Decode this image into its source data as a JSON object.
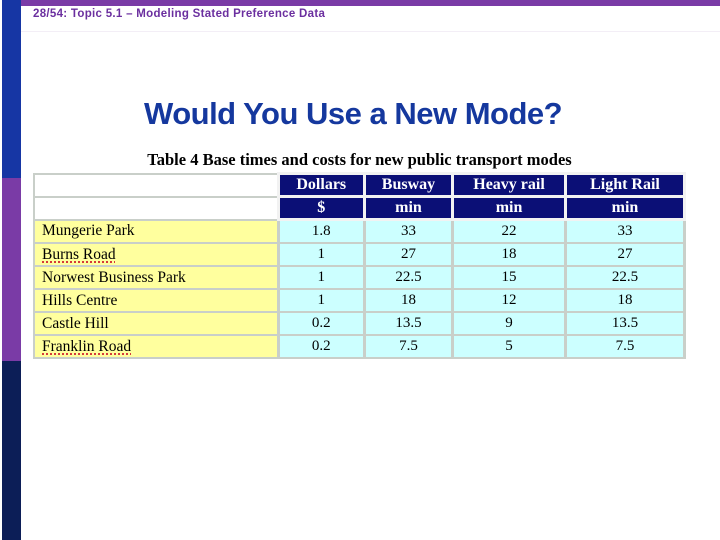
{
  "header": {
    "breadcrumb": "28/54: Topic 5.1 – Modeling Stated Preference Data"
  },
  "slide": {
    "title": "Would You Use a New Mode?"
  },
  "table": {
    "caption": "Table 4 Base times and costs for new public transport modes",
    "columns": [
      "",
      "Dollars",
      "Busway",
      "Heavy rail",
      "Light Rail"
    ],
    "units": [
      "",
      "$",
      "min",
      "min",
      "min"
    ],
    "rows": [
      {
        "name": "Mungerie Park",
        "values": [
          "1.8",
          "33",
          "22",
          "33"
        ],
        "misspelled": false
      },
      {
        "name": "Burns Road",
        "values": [
          "1",
          "27",
          "18",
          "27"
        ],
        "misspelled": true
      },
      {
        "name": "Norwest Business Park",
        "values": [
          "1",
          "22.5",
          "15",
          "22.5"
        ],
        "misspelled": false
      },
      {
        "name": "Hills Centre",
        "values": [
          "1",
          "18",
          "12",
          "18"
        ],
        "misspelled": false
      },
      {
        "name": "Castle Hill",
        "values": [
          "0.2",
          "13.5",
          "9",
          "13.5"
        ],
        "misspelled": false
      },
      {
        "name": "Franklin Road",
        "values": [
          "0.2",
          "7.5",
          "5",
          "7.5"
        ],
        "misspelled": true
      }
    ]
  },
  "colors": {
    "top_strip": "#7a3ba6",
    "side_bar_top": "#1636a4",
    "side_bar_middle": "#7a3ba6",
    "side_bar_bottom": "#0c1e57",
    "breadcrumb_text": "#6b2f9f",
    "title_text": "#15389e",
    "table_header_bg": "#0b0f76",
    "row_name_bg": "#ffff9e",
    "value_cell_bg": "#ccffff",
    "spellcheck_underline": "#d43a3a"
  }
}
